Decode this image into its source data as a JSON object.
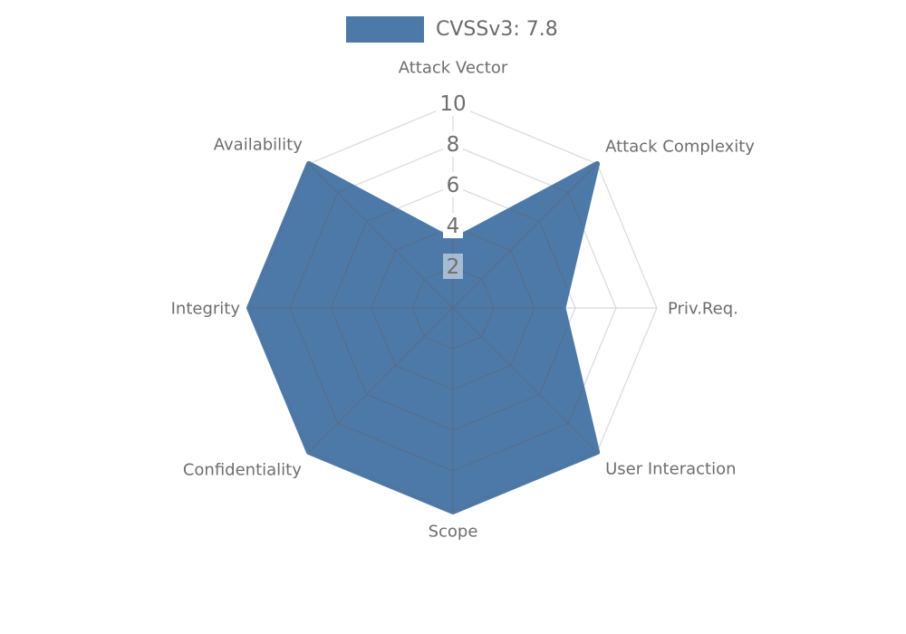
{
  "chart_data": {
    "type": "radar",
    "categories": [
      "Attack Vector",
      "Attack Complexity",
      "Priv.Req.",
      "User Interaction",
      "Scope",
      "Confidentiality",
      "Integrity",
      "Availability"
    ],
    "series": [
      {
        "name": "CVSSv3: 7.8",
        "values": [
          3.3,
          10,
          5.4,
          10,
          10,
          10,
          10,
          10
        ]
      }
    ],
    "axis_max": 10,
    "axis_min": 0,
    "ticks": [
      2,
      4,
      6,
      8,
      10
    ],
    "legend": {
      "label": "CVSSv3: 7.8",
      "position": "top-center"
    },
    "layout": {
      "grid": "on",
      "start_axis": "top",
      "direction": "clockwise",
      "rings": "polygonal-web"
    },
    "colors": {
      "fill": "#4d79a9",
      "stroke": "#4d79a9",
      "axis_label": "#6e6e6e",
      "tick_label": "#6e6e6e",
      "legend_text": "#6b6b6b",
      "grid_outside_fill": "#d2d5da",
      "grid_inside_fill": "#5a6b82",
      "tick_box": "#ffffff"
    }
  }
}
